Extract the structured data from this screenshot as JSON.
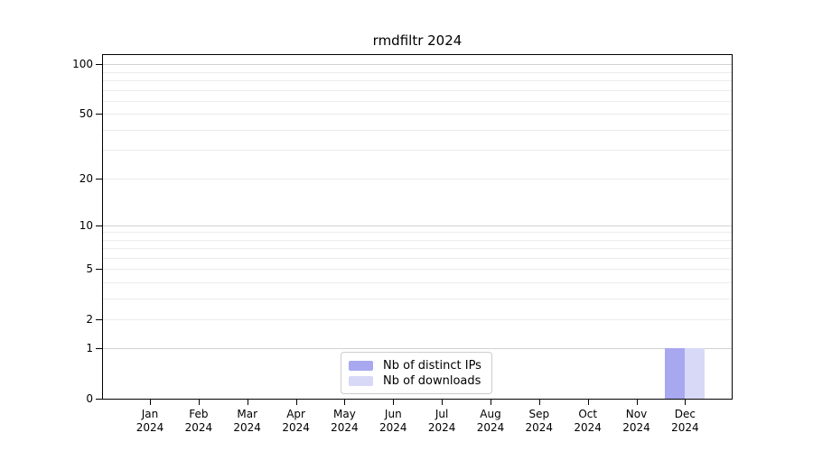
{
  "chart_data": {
    "type": "bar",
    "title": "rmdfiltr 2024",
    "categories": [
      "Jan 2024",
      "Feb 2024",
      "Mar 2024",
      "Apr 2024",
      "May 2024",
      "Jun 2024",
      "Jul 2024",
      "Aug 2024",
      "Sep 2024",
      "Oct 2024",
      "Nov 2024",
      "Dec 2024"
    ],
    "series": [
      {
        "name": "Nb of distinct IPs",
        "color": "#a8a8f0",
        "values": [
          0,
          0,
          0,
          0,
          0,
          0,
          0,
          0,
          0,
          0,
          0,
          1
        ]
      },
      {
        "name": "Nb of downloads",
        "color": "#d8d8f7",
        "values": [
          0,
          0,
          0,
          0,
          0,
          0,
          0,
          0,
          0,
          0,
          0,
          1
        ]
      }
    ],
    "xlabel": "",
    "ylabel": "",
    "y_scale": "log1p",
    "ylim": [
      0,
      114
    ],
    "y_ticks": [
      0,
      1,
      2,
      5,
      10,
      20,
      50,
      100
    ],
    "grid_minor": [
      2,
      3,
      4,
      5,
      6,
      7,
      8,
      9,
      20,
      30,
      40,
      50,
      60,
      70,
      80,
      90
    ],
    "grid_major": [
      1,
      10,
      100
    ],
    "grid": "horizontal",
    "legend_position": "bottom-center",
    "bar_values_note": "Dec 2024: distinct IPs = 1, downloads = 1; all other months 0"
  },
  "colors": {
    "axis": "#000000",
    "grid_minor": "#ececec",
    "grid_major": "#d2d2d2",
    "background": "#ffffff",
    "series_distinct_ips": "#a8a8f0",
    "series_downloads": "#d8d8f7"
  }
}
